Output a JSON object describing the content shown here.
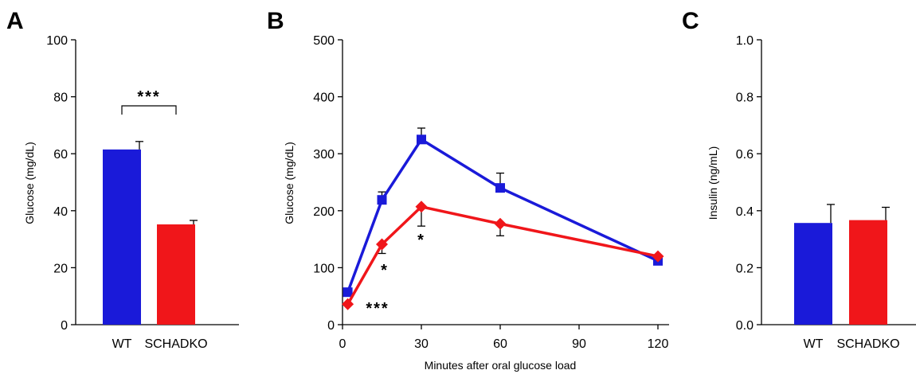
{
  "colors": {
    "wt": "#1a1ad9",
    "schadko": "#f0161a",
    "axis": "#000000"
  },
  "chart_data": [
    {
      "panel": "A",
      "type": "bar",
      "categories": [
        "WT",
        "SCHADKO"
      ],
      "values": [
        61.5,
        35.2
      ],
      "errors": [
        2.8,
        1.4
      ],
      "ylabel": "Glucose (mg/dL)",
      "xlabel": "",
      "ylim": [
        0,
        100
      ],
      "yticks": [
        "0",
        "20",
        "40",
        "60",
        "80",
        "100"
      ],
      "annotation": "***"
    },
    {
      "panel": "B",
      "type": "line",
      "x": [
        2,
        15,
        30,
        60,
        120
      ],
      "xticks": [
        "0",
        "30",
        "60",
        "90",
        "120"
      ],
      "xlim": [
        0,
        120
      ],
      "ylim": [
        0,
        500
      ],
      "yticks": [
        "0",
        "100",
        "200",
        "300",
        "400",
        "500"
      ],
      "xlabel": "Minutes after oral glucose load",
      "ylabel": "Glucose (mg/dL)",
      "series": [
        {
          "key": "wt",
          "marker": "square",
          "values": [
            57,
            219,
            325,
            240,
            112
          ],
          "errors": [
            0,
            14,
            20,
            26,
            0
          ],
          "error_dir": [
            0,
            1,
            1,
            1,
            0
          ]
        },
        {
          "key": "schadko",
          "marker": "diamond",
          "values": [
            36,
            141,
            207,
            177,
            120
          ],
          "errors": [
            0,
            16,
            34,
            21,
            0
          ],
          "error_dir": [
            0,
            -1,
            -1,
            -1,
            0
          ]
        }
      ],
      "annotations": [
        "***",
        "*",
        "*"
      ]
    },
    {
      "panel": "C",
      "type": "bar",
      "categories": [
        "WT",
        "SCHADKO"
      ],
      "values": [
        0.357,
        0.367
      ],
      "errors": [
        0.065,
        0.045
      ],
      "ylabel": "Insulin (ng/mL)",
      "xlabel": "",
      "ylim": [
        0,
        1.0
      ],
      "yticks": [
        "0.0",
        "0.2",
        "0.4",
        "0.6",
        "0.8",
        "1.0"
      ]
    }
  ]
}
